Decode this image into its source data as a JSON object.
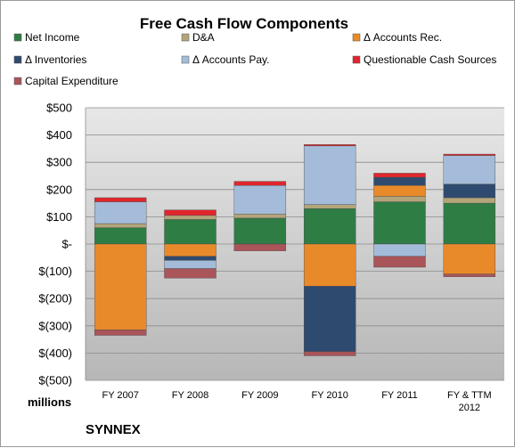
{
  "chart_data": {
    "type": "bar",
    "stacked": true,
    "title": "Free Cash Flow Components",
    "units_label": "millions",
    "brand_label": "SYNNEX",
    "categories": [
      "FY 2007",
      "FY 2008",
      "FY 2009",
      "FY 2010",
      "FY 2011",
      "FY & TTM 2012"
    ],
    "ylim": [
      -500,
      500
    ],
    "yticks": [
      -500,
      -400,
      -300,
      -200,
      -100,
      0,
      100,
      200,
      300,
      400,
      500
    ],
    "ytick_labels": [
      "$(500)",
      "$(400)",
      "$(300)",
      "$(200)",
      "$(100)",
      "$-",
      "$100",
      "$200",
      "$300",
      "$400",
      "$500"
    ],
    "grid": true,
    "legend_position": "top",
    "series": [
      {
        "name": "Net Income",
        "color": "#2e7d45",
        "values": [
          60,
          90,
          95,
          130,
          155,
          150
        ]
      },
      {
        "name": "D&A",
        "color": "#b3a57a",
        "values": [
          15,
          15,
          15,
          15,
          20,
          20
        ]
      },
      {
        "name": "Δ Accounts Rec.",
        "color": "#e98a2a",
        "values": [
          -315,
          -45,
          0,
          -155,
          40,
          -110
        ]
      },
      {
        "name": "Δ Inventories",
        "color": "#2f4a6f",
        "values": [
          0,
          -15,
          0,
          -240,
          30,
          50
        ]
      },
      {
        "name": "Δ Accounts Pay.",
        "color": "#a4bcd9",
        "values": [
          80,
          -30,
          105,
          215,
          -45,
          105
        ]
      },
      {
        "name": "Questionable Cash Sources",
        "color": "#e0262c",
        "values": [
          15,
          20,
          15,
          5,
          15,
          5
        ]
      },
      {
        "name": "Capital Expenditure",
        "color": "#a9555a",
        "values": [
          -20,
          -35,
          -25,
          -15,
          -40,
          -10
        ]
      }
    ]
  }
}
